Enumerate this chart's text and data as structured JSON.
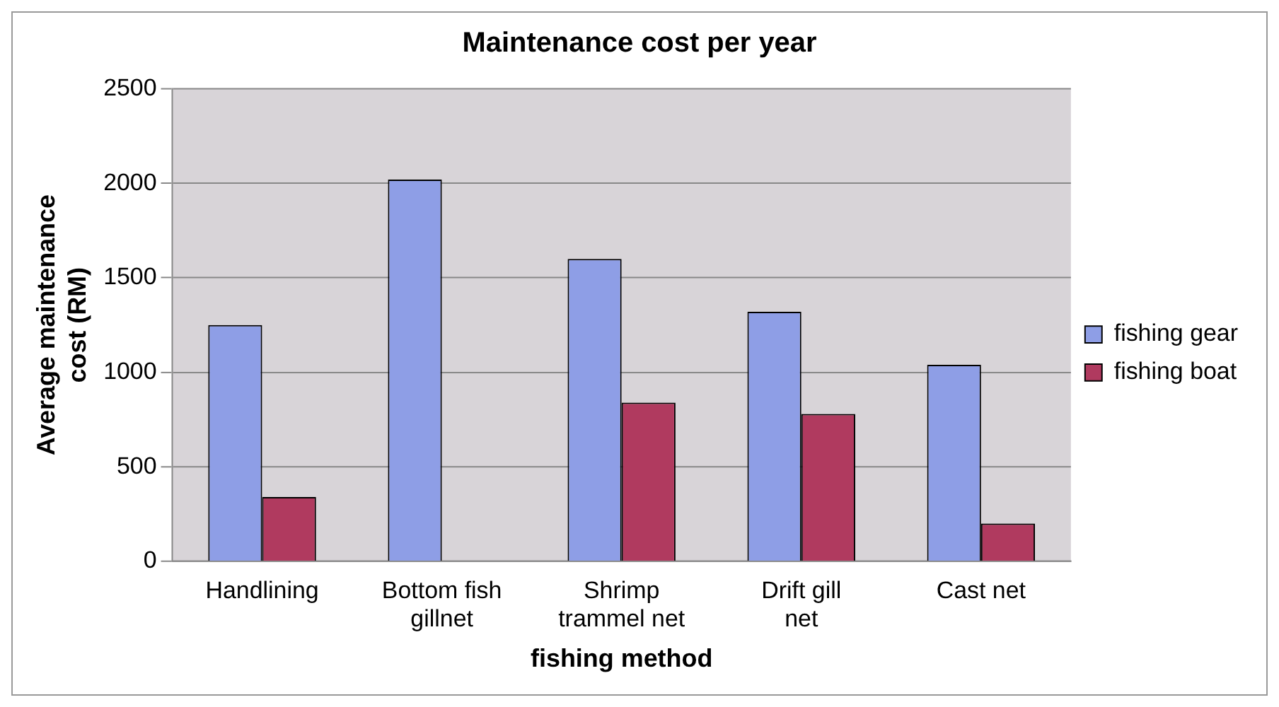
{
  "chart_data": {
    "type": "bar",
    "title": "Maintenance cost per year",
    "xlabel": "fishing method",
    "ylabel": "Average maintenance cost (RM)",
    "categories": [
      "Handlining",
      "Bottom fish gillnet",
      "Shrimp trammel net",
      "Drift gill net",
      "Cast net"
    ],
    "series": [
      {
        "name": "fishing gear",
        "color": "#8e9ee6",
        "values": [
          1250,
          2020,
          1600,
          1320,
          1040
        ]
      },
      {
        "name": "fishing boat",
        "color": "#b03a5f",
        "values": [
          340,
          0,
          840,
          780,
          200
        ]
      }
    ],
    "ylim": [
      0,
      2500
    ],
    "yticks": [
      0,
      500,
      1000,
      1500,
      2000,
      2500
    ],
    "grid": "y",
    "legend": "right"
  }
}
